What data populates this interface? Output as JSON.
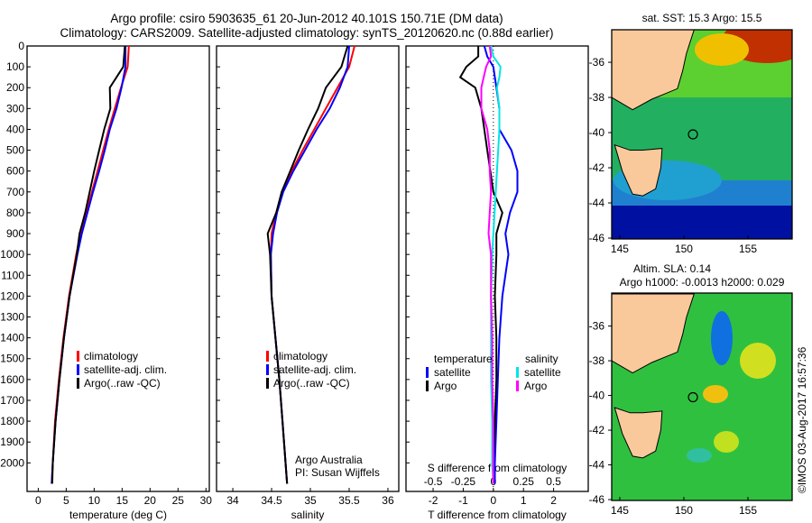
{
  "title": {
    "line1": "Argo profile: csiro 5903635_61 20-Jun-2012 40.101S 150.71E (DM data)",
    "line2": "Climatology: CARS2009. Satellite-adjusted climatology: synTS_20120620.nc (0.88d earlier)"
  },
  "colors": {
    "climatology": "#ff0000",
    "satellite": "#0000ff",
    "argo": "#000000",
    "sal_satellite": "#00e5e5",
    "sal_argo": "#ff00ff"
  },
  "chart_data": [
    {
      "type": "line",
      "xlabel": "temperature (deg C)",
      "ylabel": "depth",
      "xlim": [
        -2,
        30.6
      ],
      "ylim": [
        2137,
        0
      ],
      "xticks": [
        0,
        5,
        10,
        15,
        20,
        25,
        30
      ],
      "yticks": [
        0,
        100,
        200,
        300,
        400,
        500,
        600,
        700,
        800,
        900,
        1000,
        1100,
        1200,
        1300,
        1400,
        1500,
        1600,
        1700,
        1800,
        1900,
        2000
      ],
      "legend": [
        "climatology",
        "satellite-adj. clim.",
        "Argo(..raw -QC)"
      ],
      "legend_position": "lower-center",
      "depth": [
        0,
        100,
        200,
        300,
        400,
        500,
        600,
        700,
        800,
        900,
        1000,
        1200,
        1400,
        1600,
        1800,
        2000,
        2100
      ],
      "series": [
        {
          "name": "climatology",
          "color": "#ff0000",
          "values": [
            16.2,
            16.0,
            14.8,
            13.7,
            12.6,
            11.6,
            10.6,
            9.6,
            8.6,
            7.6,
            6.8,
            5.5,
            4.5,
            3.7,
            3.0,
            2.6,
            2.4
          ]
        },
        {
          "name": "satellite-adj. clim.",
          "color": "#0000ff",
          "values": [
            15.6,
            15.6,
            14.9,
            14.0,
            12.8,
            11.9,
            10.9,
            9.8,
            8.8,
            7.8,
            7.0,
            5.6,
            4.6,
            3.8,
            3.1,
            2.6,
            2.4
          ]
        },
        {
          "name": "Argo(..raw -QC)",
          "color": "#000000",
          "values": [
            15.5,
            15.2,
            12.8,
            12.9,
            11.8,
            10.9,
            10.0,
            9.2,
            8.4,
            7.4,
            6.9,
            5.6,
            4.6,
            3.8,
            3.1,
            2.6,
            2.5
          ]
        }
      ]
    },
    {
      "type": "line",
      "xlabel": "salinity",
      "xlim": [
        33.79,
        36.14
      ],
      "ylim": [
        2137,
        0
      ],
      "xticks": [
        34,
        34.5,
        35,
        35.5,
        36
      ],
      "xticklabels": [
        "34",
        "34.5",
        "35",
        "35.5",
        "36"
      ],
      "legend": [
        "climatology",
        "satellite-adj. clim.",
        "Argo(..raw -QC)"
      ],
      "legend_position": "lower-center",
      "annotation": [
        "Argo Australia",
        "PI: Susan Wijffels"
      ],
      "depth": [
        0,
        100,
        200,
        300,
        400,
        500,
        600,
        700,
        800,
        900,
        1000,
        1200,
        1400,
        1600,
        1800,
        2000,
        2100
      ],
      "series": [
        {
          "name": "climatology",
          "color": "#ff0000",
          "values": [
            35.57,
            35.5,
            35.35,
            35.2,
            35.05,
            34.9,
            34.76,
            34.64,
            34.56,
            34.5,
            34.49,
            34.5,
            34.55,
            34.6,
            34.64,
            34.68,
            34.7
          ]
        },
        {
          "name": "satellite-adj. clim.",
          "color": "#0000ff",
          "values": [
            35.5,
            35.48,
            35.38,
            35.25,
            35.08,
            34.93,
            34.78,
            34.65,
            34.57,
            34.52,
            34.49,
            34.5,
            34.55,
            34.6,
            34.64,
            34.68,
            34.7
          ]
        },
        {
          "name": "Argo(..raw -QC)",
          "color": "#000000",
          "values": [
            35.48,
            35.4,
            35.2,
            35.1,
            34.97,
            34.85,
            34.74,
            34.63,
            34.56,
            34.45,
            34.48,
            34.5,
            34.55,
            34.6,
            34.64,
            34.68,
            34.7
          ]
        }
      ]
    },
    {
      "type": "line",
      "xlabel": "T difference from climatology",
      "xlabel2": "S difference from climatology",
      "xlim": [
        -2.9,
        3.15
      ],
      "ylim": [
        2137,
        0
      ],
      "xticks": [
        -2,
        -1,
        0,
        1,
        2
      ],
      "xticklabels": [
        "-2",
        "-1",
        "0",
        "1",
        "2"
      ],
      "xticks2": [
        -0.5,
        -0.25,
        0,
        0.25,
        0.5
      ],
      "xticklabels2": [
        "-0.5",
        "-0.25",
        "0",
        "0.25",
        "0.5"
      ],
      "s_scale": 4,
      "legend_titles": [
        "temperature",
        "salinity"
      ],
      "legend": [
        "satellite",
        "Argo",
        "satellite",
        "Argo"
      ],
      "depth": [
        0,
        50,
        100,
        150,
        200,
        300,
        400,
        500,
        600,
        700,
        800,
        900,
        1000,
        1200,
        1400,
        1600,
        1800,
        2000,
        2100
      ],
      "series": [
        {
          "name": "T satellite",
          "color": "#0000ff",
          "unit": "T",
          "values": [
            -0.3,
            -0.2,
            0.0,
            0.05,
            0.1,
            0.2,
            0.2,
            0.6,
            0.8,
            0.8,
            0.55,
            0.4,
            0.5,
            0.3,
            0.2,
            0.15,
            0.1,
            0.05,
            0.05
          ]
        },
        {
          "name": "T Argo",
          "color": "#000000",
          "unit": "T",
          "values": [
            -0.5,
            -0.5,
            -0.9,
            -1.1,
            -0.6,
            -0.4,
            -0.3,
            -0.2,
            -0.1,
            0.0,
            0.3,
            0.1,
            0.1,
            0.05,
            0.1,
            0.1,
            0.05,
            0.0,
            0.0
          ]
        },
        {
          "name": "S satellite",
          "color": "#00e5e5",
          "unit": "S",
          "values": [
            -0.02,
            0.0,
            0.06,
            0.05,
            0.03,
            0.05,
            0.05,
            0.04,
            0.03,
            0.02,
            0.01,
            0.0,
            -0.01,
            -0.02,
            -0.02,
            -0.02,
            -0.01,
            -0.01,
            0.0
          ]
        },
        {
          "name": "S Argo",
          "color": "#ff00ff",
          "unit": "S",
          "values": [
            -0.03,
            -0.02,
            -0.06,
            -0.08,
            -0.1,
            -0.1,
            -0.05,
            -0.03,
            -0.03,
            -0.02,
            -0.03,
            -0.04,
            -0.02,
            -0.02,
            -0.01,
            -0.01,
            0.0,
            0.0,
            0.0
          ]
        }
      ]
    }
  ],
  "maps": [
    {
      "title": "sat. SST: 15.3 Argo: 15.5",
      "xticks": [
        "145",
        "150",
        "155"
      ],
      "yticks": [
        "-36",
        "-38",
        "-40",
        "-42",
        "-44",
        "-46"
      ],
      "float_lon": 150.71,
      "float_lat": -40.1
    },
    {
      "title1": "Altim. SLA: 0.14",
      "title2": "Argo h1000: -0.0013 h2000: 0.029",
      "xticks": [
        "145",
        "150",
        "155"
      ],
      "yticks": [
        "-36",
        "-38",
        "-40",
        "-42",
        "-44",
        "-46"
      ],
      "float_lon": 150.71,
      "float_lat": -40.1
    }
  ],
  "stamp": "©IMOS 03-Aug-2017 16:57:36"
}
